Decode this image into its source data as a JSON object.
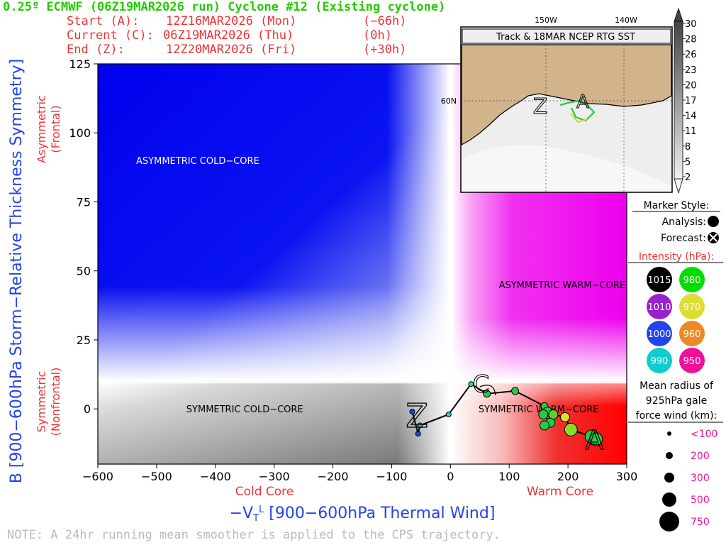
{
  "header": {
    "title": "0.25º ECMWF (06Z19MAR2026 run) Cyclone #12 (Existing cyclone)",
    "start_label": "Start (A):",
    "start_time": "12Z16MAR2026 (Mon)",
    "start_offset": "(−66h)",
    "current_label": "Current (C):",
    "current_time": "06Z19MAR2026 (Thu)",
    "current_offset": "(0h)",
    "end_label": "End (Z):",
    "end_time": "12Z20MAR2026 (Fri)",
    "end_offset": "(+30h)"
  },
  "note": "NOTE:  A 24hr running mean smoother is applied to the CPS trajectory.",
  "chart_data": {
    "type": "scatter",
    "title": "",
    "xlabel": "−VTL [900−600hPa Thermal Wind]",
    "xlabel_main": "−V",
    "xlabel_sub": "T",
    "xlabel_sup": "L",
    "xlabel_rest": " [900−600hPa Thermal Wind]",
    "ylabel": "B [900−600hPa Storm−Relative Thickness Symmetry]",
    "xlim": [
      -600,
      300
    ],
    "ylim": [
      -20,
      125
    ],
    "x_ticks": [
      -600,
      -500,
      -400,
      -300,
      -200,
      -100,
      0,
      100,
      200,
      300
    ],
    "x_tick_labels": [
      "−600",
      "−500",
      "−400",
      "−300",
      "−200",
      "−100",
      "0",
      "100",
      "200",
      "300"
    ],
    "y_ticks": [
      0,
      25,
      50,
      75,
      100,
      125
    ],
    "y_tick_labels": [
      "0",
      "25",
      "50",
      "75",
      "100",
      "125"
    ],
    "x_side_labels": {
      "cold": "Cold Core",
      "warm": "Warm Core"
    },
    "y_side_labels": {
      "asym_1": "Asymmetric",
      "asym_2": "(Frontal)",
      "sym_1": "Symmetric",
      "sym_2": "(Nonfrontal)"
    },
    "region_labels": {
      "asym_cold": "ASYMMETRIC COLD−CORE",
      "asym_warm": "ASYMMETRIC WARM−CORE",
      "sym_cold": "SYMMETRIC COLD−CORE",
      "sym_warm": "SYMMETRIC WARM−CORE"
    },
    "thresholds": {
      "b": 10,
      "vtl": 0
    },
    "trajectory": [
      {
        "x": -65,
        "y": -1,
        "color": "#2040e0",
        "size": "small"
      },
      {
        "x": -55,
        "y": -9,
        "color": "#2040e0",
        "size": "small"
      },
      {
        "x": -52,
        "y": -6,
        "color": "#20b0d8",
        "size": "small"
      },
      {
        "x": -3,
        "y": -2,
        "color": "#20d0c0",
        "size": "small"
      },
      {
        "x": 35,
        "y": 9,
        "color": "#30d890",
        "size": "small"
      },
      {
        "x": 62,
        "y": 5.5,
        "color": "#22cc44",
        "size": "medium"
      },
      {
        "x": 110,
        "y": 6.5,
        "color": "#22cc44",
        "size": "medium"
      },
      {
        "x": 160,
        "y": 1,
        "color": "#22cc44",
        "size": "medium"
      },
      {
        "x": 165,
        "y": -1,
        "color": "#22cc44",
        "size": "large"
      },
      {
        "x": 158,
        "y": -2,
        "color": "#22cc44",
        "size": "large"
      },
      {
        "x": 170,
        "y": -5,
        "color": "#22cc44",
        "size": "large"
      },
      {
        "x": 160,
        "y": -6,
        "color": "#22cc44",
        "size": "large"
      },
      {
        "x": 175,
        "y": -2,
        "color": "#55d822",
        "size": "large"
      },
      {
        "x": 195,
        "y": -3,
        "color": "#d8e030",
        "size": "large"
      },
      {
        "x": 205,
        "y": -7.5,
        "color": "#88dd22",
        "size": "xlarge"
      },
      {
        "x": 240,
        "y": -10,
        "color": "#22cc44",
        "size": "xlarge"
      },
      {
        "x": 248,
        "y": -11,
        "color": "#22cc44",
        "size": "xlarge"
      }
    ],
    "start_marker": {
      "x": -57,
      "y": -2,
      "letter": "A"
    },
    "current_marker": {
      "x": 35,
      "y": 9,
      "letter": "C"
    },
    "end_marker": {
      "x": 245,
      "y": -12,
      "letter": "Z"
    },
    "forecast_marker": {
      "x": 55,
      "y": 7.5
    }
  },
  "inset_map": {
    "title": "Track & 18MAR NCEP RTG SST",
    "lon_labels": [
      "150W",
      "140W"
    ],
    "lat_label": "60N",
    "colors": {
      "land": "#d2b48c",
      "water": "#eeeeee",
      "track": "#22cc44"
    }
  },
  "colorbar": {
    "labels": [
      "30",
      "28",
      "26",
      "23",
      "20",
      "17",
      "14",
      "11",
      "8",
      "5",
      "2"
    ]
  },
  "legend": {
    "marker_style_title": "Marker Style:",
    "analysis_label": "Analysis:",
    "forecast_label": "Forecast:",
    "intensity_title": "Intensity (hPa):",
    "intensity": [
      {
        "value": "1015",
        "color": "#000000",
        "text_color": "#ffffff"
      },
      {
        "value": "980",
        "color": "#00dd00",
        "text_color": "#ffffff"
      },
      {
        "value": "1010",
        "color": "#9922cc",
        "text_color": "#ffffff"
      },
      {
        "value": "970",
        "color": "#dddd33",
        "text_color": "#ffffff"
      },
      {
        "value": "1000",
        "color": "#2244ee",
        "text_color": "#ffffff"
      },
      {
        "value": "960",
        "color": "#ee8822",
        "text_color": "#ffffff"
      },
      {
        "value": "990",
        "color": "#11cccc",
        "text_color": "#ffffff"
      },
      {
        "value": "950",
        "color": "#ee1199",
        "text_color": "#ffffff"
      }
    ],
    "radius_title_1": "Mean radius of",
    "radius_title_2": "925hPa gale",
    "radius_title_3": "force wind (km):",
    "radius": [
      {
        "label": "<100",
        "r": 3
      },
      {
        "label": "200",
        "r": 5
      },
      {
        "label": "300",
        "r": 7
      },
      {
        "label": "500",
        "r": 10
      },
      {
        "label": "750",
        "r": 14
      }
    ]
  }
}
